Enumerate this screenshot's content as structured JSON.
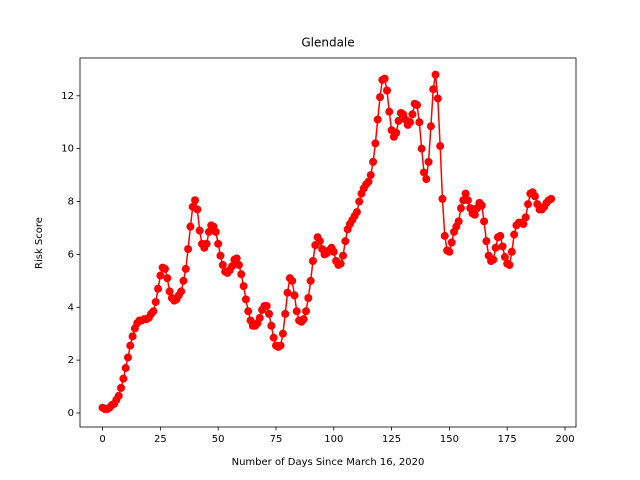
{
  "chart_data": {
    "type": "line",
    "title": "Glendale",
    "x_label": "Number of Days Since March 16, 2020",
    "y_label": "Risk Score",
    "color": "#ff0000",
    "markers": true,
    "x": [
      0,
      1,
      2,
      3,
      4,
      5,
      6,
      7,
      8,
      9,
      10,
      11,
      12,
      13,
      14,
      15,
      16,
      17,
      18,
      19,
      20,
      21,
      22,
      23,
      24,
      25,
      26,
      27,
      28,
      29,
      30,
      31,
      32,
      33,
      34,
      35,
      36,
      37,
      38,
      39,
      40,
      41,
      42,
      43,
      44,
      45,
      46,
      47,
      48,
      49,
      50,
      51,
      52,
      53,
      54,
      55,
      56,
      57,
      58,
      59,
      60,
      61,
      62,
      63,
      64,
      65,
      66,
      67,
      68,
      69,
      70,
      71,
      72,
      73,
      74,
      75,
      76,
      77,
      78,
      79,
      80,
      81,
      82,
      83,
      84,
      85,
      86,
      87,
      88,
      89,
      90,
      91,
      92,
      93,
      94,
      95,
      96,
      97,
      98,
      99,
      100,
      101,
      102,
      103,
      104,
      105,
      106,
      107,
      108,
      109,
      110,
      111,
      112,
      113,
      114,
      115,
      116,
      117,
      118,
      119,
      120,
      121,
      122,
      123,
      124,
      125,
      126,
      127,
      128,
      129,
      130,
      131,
      132,
      133,
      134,
      135,
      136,
      137,
      138,
      139,
      140,
      141,
      142,
      143,
      144,
      145,
      146,
      147,
      148,
      149,
      150,
      151,
      152,
      153,
      154,
      155,
      156,
      157,
      158,
      159,
      160,
      161,
      162,
      163,
      164,
      165,
      166,
      167,
      168,
      169,
      170,
      171,
      172,
      173,
      174,
      175,
      176,
      177,
      178,
      179,
      180,
      181,
      182,
      183,
      184,
      185,
      186,
      187,
      188,
      189,
      190,
      191,
      192,
      193,
      194
    ],
    "values": [
      0.2,
      0.15,
      0.15,
      0.2,
      0.3,
      0.35,
      0.5,
      0.65,
      0.95,
      1.3,
      1.7,
      2.1,
      2.55,
      2.9,
      3.2,
      3.4,
      3.5,
      3.5,
      3.55,
      3.55,
      3.6,
      3.75,
      3.85,
      4.2,
      4.7,
      5.2,
      5.5,
      5.45,
      5.1,
      4.6,
      4.35,
      4.25,
      4.3,
      4.45,
      4.6,
      5.0,
      5.45,
      6.2,
      7.05,
      7.8,
      8.05,
      7.7,
      6.9,
      6.4,
      6.25,
      6.4,
      6.85,
      7.1,
      7.05,
      6.85,
      6.4,
      5.95,
      5.6,
      5.35,
      5.3,
      5.4,
      5.55,
      5.8,
      5.85,
      5.6,
      5.25,
      4.8,
      4.3,
      3.85,
      3.5,
      3.3,
      3.3,
      3.4,
      3.6,
      3.9,
      4.05,
      4.05,
      3.75,
      3.3,
      2.85,
      2.55,
      2.5,
      2.55,
      3.0,
      3.75,
      4.55,
      5.1,
      5.0,
      4.45,
      3.85,
      3.5,
      3.45,
      3.55,
      3.85,
      4.35,
      5.0,
      5.75,
      6.35,
      6.65,
      6.5,
      6.2,
      6.0,
      6.05,
      6.15,
      6.25,
      6.1,
      5.75,
      5.6,
      5.65,
      5.95,
      6.5,
      6.95,
      7.15,
      7.3,
      7.45,
      7.6,
      8.0,
      8.3,
      8.5,
      8.65,
      8.75,
      9.0,
      9.5,
      10.2,
      11.1,
      11.95,
      12.6,
      12.65,
      12.2,
      11.4,
      10.7,
      10.45,
      10.6,
      11.05,
      11.35,
      11.3,
      11.1,
      10.9,
      11.0,
      11.3,
      11.7,
      11.65,
      11.0,
      10.0,
      9.1,
      8.85,
      9.5,
      10.85,
      12.25,
      12.8,
      11.9,
      10.1,
      8.1,
      6.7,
      6.15,
      6.1,
      6.45,
      6.85,
      7.05,
      7.25,
      7.75,
      8.05,
      8.3,
      8.05,
      7.75,
      7.55,
      7.5,
      7.75,
      7.95,
      7.85,
      7.25,
      6.5,
      5.95,
      5.75,
      5.8,
      6.25,
      6.65,
      6.7,
      6.3,
      5.9,
      5.65,
      5.6,
      6.1,
      6.75,
      7.1,
      7.2,
      7.2,
      7.15,
      7.4,
      7.9,
      8.3,
      8.35,
      8.2,
      7.9,
      7.7,
      7.7,
      7.8,
      7.95,
      8.05,
      8.1
    ],
    "xlim": [
      -9.75,
      204.75
    ],
    "ylim": [
      -0.53,
      13.43
    ],
    "xticks": [
      0,
      25,
      50,
      75,
      100,
      125,
      150,
      175,
      200
    ],
    "yticks": [
      0,
      2,
      4,
      6,
      8,
      10,
      12
    ]
  }
}
